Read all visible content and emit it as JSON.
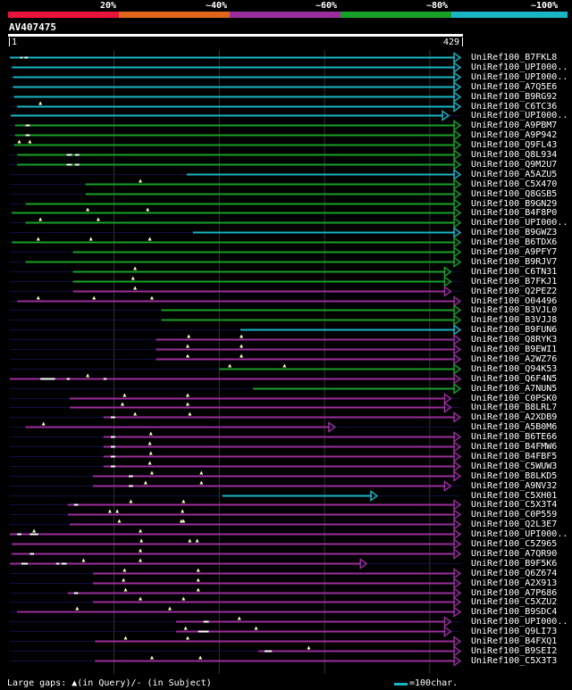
{
  "legend": [
    {
      "label": "20%",
      "color": "#e8143c"
    },
    {
      "label": "~40%",
      "color": "#e0661c"
    },
    {
      "label": "~60%",
      "color": "#9a2e9c"
    },
    {
      "label": "~80%",
      "color": "#18a028"
    },
    {
      "label": "~100%",
      "color": "#18b6c4"
    }
  ],
  "query": {
    "name": "AV407475",
    "start": "1",
    "end": "429",
    "length": 429
  },
  "colors": {
    "cyan": "#18b6c4",
    "green": "#18a028",
    "purple": "#9a2e9c",
    "gap": "#101040",
    "grid": "#333"
  },
  "hits": [
    {
      "name": "UniRef100_B7FKL8",
      "c": "cyan",
      "s": 1,
      "e": 429,
      "gaps": [
        [
          11,
          13
        ],
        [
          15,
          18
        ]
      ],
      "q": [],
      "arrow": true
    },
    {
      "name": "UniRef100_UPI000..",
      "c": "cyan",
      "s": 3,
      "e": 429,
      "gaps": [],
      "q": [],
      "arrow": true
    },
    {
      "name": "UniRef100_UPI000..",
      "c": "cyan",
      "s": 4,
      "e": 429,
      "gaps": [],
      "q": [],
      "arrow": true
    },
    {
      "name": "UniRef100_A7Q5E6",
      "c": "cyan",
      "s": 4,
      "e": 429,
      "gaps": [],
      "q": [],
      "arrow": true
    },
    {
      "name": "UniRef100_B9RG92",
      "c": "cyan",
      "s": 5,
      "e": 429,
      "gaps": [],
      "q": [],
      "arrow": true
    },
    {
      "name": "UniRef100_C6TC36",
      "c": "cyan",
      "s": 8,
      "e": 429,
      "gaps": [],
      "q": [
        30
      ],
      "arrow": true
    },
    {
      "name": "UniRef100_UPI000..",
      "c": "cyan",
      "s": 2,
      "e": 418,
      "gaps": [],
      "q": [],
      "arrow": true
    },
    {
      "name": "UniRef100_A9PBM7",
      "c": "green",
      "s": 6,
      "e": 429,
      "gaps": [
        [
          16,
          20
        ]
      ],
      "q": [],
      "arrow": true
    },
    {
      "name": "UniRef100_A9P942",
      "c": "green",
      "s": 6,
      "e": 429,
      "gaps": [
        [
          16,
          20
        ]
      ],
      "q": [],
      "arrow": true
    },
    {
      "name": "UniRef100_Q9FL43",
      "c": "green",
      "s": 5,
      "e": 429,
      "gaps": [],
      "q": [
        10,
        20
      ],
      "arrow": true
    },
    {
      "name": "UniRef100_Q8L934",
      "c": "green",
      "s": 8,
      "e": 429,
      "gaps": [
        [
          55,
          60
        ],
        [
          63,
          67
        ]
      ],
      "q": [],
      "arrow": true
    },
    {
      "name": "UniRef100_Q9M2U7",
      "c": "green",
      "s": 8,
      "e": 429,
      "gaps": [
        [
          55,
          60
        ],
        [
          63,
          67
        ]
      ],
      "q": [],
      "arrow": true
    },
    {
      "name": "UniRef100_A5AZU5",
      "c": "cyan",
      "s": 169,
      "e": 429,
      "gaps": [],
      "q": [],
      "arrow": true
    },
    {
      "name": "UniRef100_C5X470",
      "c": "green",
      "s": 73,
      "e": 429,
      "gaps": [],
      "q": [
        125
      ],
      "arrow": true
    },
    {
      "name": "UniRef100_Q8GSB5",
      "c": "green",
      "s": 73,
      "e": 429,
      "gaps": [],
      "q": [],
      "arrow": true
    },
    {
      "name": "UniRef100_B9GN29",
      "c": "green",
      "s": 16,
      "e": 429,
      "gaps": [],
      "q": [],
      "arrow": true
    },
    {
      "name": "UniRef100_B4F8P0",
      "c": "green",
      "s": 3,
      "e": 429,
      "gaps": [],
      "q": [
        75,
        132
      ],
      "arrow": true
    },
    {
      "name": "UniRef100_UPI000..",
      "c": "green",
      "s": 16,
      "e": 429,
      "gaps": [],
      "q": [
        30,
        85
      ],
      "arrow": true
    },
    {
      "name": "UniRef100_B9GWZ3",
      "c": "cyan",
      "s": 175,
      "e": 429,
      "gaps": [],
      "q": [],
      "arrow": true
    },
    {
      "name": "UniRef100_B6TDX6",
      "c": "green",
      "s": 3,
      "e": 429,
      "gaps": [],
      "q": [
        28,
        78,
        134
      ],
      "arrow": true
    },
    {
      "name": "UniRef100_A9PFY7",
      "c": "green",
      "s": 61,
      "e": 429,
      "gaps": [],
      "q": [],
      "arrow": true
    },
    {
      "name": "UniRef100_B9RJV7",
      "c": "green",
      "s": 16,
      "e": 429,
      "gaps": [],
      "q": [],
      "arrow": true
    },
    {
      "name": "UniRef100_C6TN31",
      "c": "green",
      "s": 61,
      "e": 420,
      "gaps": [],
      "q": [
        120
      ],
      "arrow": true
    },
    {
      "name": "UniRef100_B7FKJ1",
      "c": "green",
      "s": 61,
      "e": 420,
      "gaps": [],
      "q": [
        118
      ],
      "arrow": true
    },
    {
      "name": "UniRef100_Q2PEZ2",
      "c": "purple",
      "s": 61,
      "e": 420,
      "gaps": [],
      "q": [
        120
      ],
      "arrow": true
    },
    {
      "name": "UniRef100_O04496",
      "c": "purple",
      "s": 8,
      "e": 429,
      "gaps": [],
      "q": [
        28,
        81,
        136
      ],
      "arrow": true
    },
    {
      "name": "UniRef100_B3VJL0",
      "c": "green",
      "s": 145,
      "e": 429,
      "gaps": [],
      "q": [],
      "arrow": true
    },
    {
      "name": "UniRef100_B3VJJ8",
      "c": "green",
      "s": 145,
      "e": 429,
      "gaps": [],
      "q": [],
      "arrow": true
    },
    {
      "name": "UniRef100_B9FUN6",
      "c": "cyan",
      "s": 220,
      "e": 429,
      "gaps": [],
      "q": [],
      "arrow": true
    },
    {
      "name": "UniRef100_Q8RYK3",
      "c": "purple",
      "s": 140,
      "e": 429,
      "gaps": [],
      "q": [
        171,
        221
      ],
      "arrow": true
    },
    {
      "name": "UniRef100_B9EWI1",
      "c": "purple",
      "s": 140,
      "e": 429,
      "gaps": [],
      "q": [
        170,
        221
      ],
      "arrow": true
    },
    {
      "name": "UniRef100_A2WZ76",
      "c": "purple",
      "s": 140,
      "e": 429,
      "gaps": [],
      "q": [
        170,
        221
      ],
      "arrow": true
    },
    {
      "name": "UniRef100_Q94K53",
      "c": "green",
      "s": 200,
      "e": 429,
      "gaps": [],
      "q": [
        210,
        262
      ],
      "arrow": true
    },
    {
      "name": "UniRef100_Q6F4N5",
      "c": "purple",
      "s": 1,
      "e": 429,
      "gaps": [
        [
          30,
          44
        ],
        [
          55,
          58
        ],
        [
          90,
          93
        ]
      ],
      "q": [
        75
      ],
      "arrow": true
    },
    {
      "name": "UniRef100_A7NUN5",
      "c": "green",
      "s": 232,
      "e": 429,
      "gaps": [],
      "q": [],
      "arrow": true
    },
    {
      "name": "UniRef100_C0PSK0",
      "c": "purple",
      "s": 58,
      "e": 420,
      "gaps": [],
      "q": [
        110,
        170
      ],
      "arrow": true
    },
    {
      "name": "UniRef100_B8LRL7",
      "c": "purple",
      "s": 58,
      "e": 420,
      "gaps": [],
      "q": [
        108,
        170
      ],
      "arrow": true
    },
    {
      "name": "UniRef100_A2XDB9",
      "c": "purple",
      "s": 90,
      "e": 429,
      "gaps": [
        [
          97,
          101
        ]
      ],
      "q": [
        120,
        172
      ],
      "arrow": true
    },
    {
      "name": "UniRef100_A5B0M6",
      "c": "purple",
      "s": 16,
      "e": 310,
      "gaps": [],
      "q": [
        33
      ],
      "arrow": true
    },
    {
      "name": "UniRef100_B6TE66",
      "c": "purple",
      "s": 90,
      "e": 429,
      "gaps": [
        [
          97,
          101
        ]
      ],
      "q": [
        135
      ],
      "arrow": true
    },
    {
      "name": "UniRef100_B4FMW6",
      "c": "purple",
      "s": 90,
      "e": 429,
      "gaps": [
        [
          97,
          101
        ]
      ],
      "q": [
        134
      ],
      "arrow": true
    },
    {
      "name": "UniRef100_B4FBF5",
      "c": "purple",
      "s": 90,
      "e": 429,
      "gaps": [
        [
          97,
          101
        ]
      ],
      "q": [
        135
      ],
      "arrow": true
    },
    {
      "name": "UniRef100_C5WUW3",
      "c": "purple",
      "s": 90,
      "e": 429,
      "gaps": [
        [
          97,
          101
        ]
      ],
      "q": [
        134
      ],
      "arrow": true
    },
    {
      "name": "UniRef100_B8LKD5",
      "c": "purple",
      "s": 80,
      "e": 429,
      "gaps": [
        [
          114,
          118
        ]
      ],
      "q": [
        136,
        183
      ],
      "arrow": true
    },
    {
      "name": "UniRef100_A9NV32",
      "c": "purple",
      "s": 80,
      "e": 420,
      "gaps": [
        [
          114,
          118
        ]
      ],
      "q": [
        130,
        183
      ],
      "arrow": true
    },
    {
      "name": "UniRef100_C5XH01",
      "c": "cyan",
      "s": 203,
      "e": 350,
      "gaps": [],
      "q": [],
      "arrow": true
    },
    {
      "name": "UniRef100_C5X3T4",
      "c": "purple",
      "s": 56,
      "e": 429,
      "gaps": [
        [
          62,
          66
        ]
      ],
      "q": [
        116,
        166
      ],
      "arrow": true
    },
    {
      "name": "UniRef100_C0P559",
      "c": "purple",
      "s": 56,
      "e": 429,
      "gaps": [],
      "q": [
        96,
        103,
        165
      ],
      "arrow": true
    },
    {
      "name": "UniRef100_Q2L3E7",
      "c": "purple",
      "s": 58,
      "e": 429,
      "gaps": [],
      "q": [
        105,
        164,
        166
      ],
      "arrow": true
    },
    {
      "name": "UniRef100_UPI000..",
      "c": "purple",
      "s": 1,
      "e": 429,
      "gaps": [
        [
          8,
          12
        ],
        [
          20,
          28
        ]
      ],
      "q": [
        24,
        125
      ],
      "arrow": true
    },
    {
      "name": "UniRef100_C5Z965",
      "c": "purple",
      "s": 3,
      "e": 429,
      "gaps": [],
      "q": [
        126,
        172,
        179
      ],
      "arrow": true
    },
    {
      "name": "UniRef100_A7QR90",
      "c": "purple",
      "s": 3,
      "e": 429,
      "gaps": [
        [
          20,
          24
        ]
      ],
      "q": [
        125
      ],
      "arrow": true
    },
    {
      "name": "UniRef100_B9F5K6",
      "c": "purple",
      "s": 1,
      "e": 340,
      "gaps": [
        [
          12,
          18
        ],
        [
          45,
          48
        ],
        [
          50,
          55
        ]
      ],
      "q": [
        71,
        125
      ],
      "arrow": true
    },
    {
      "name": "UniRef100_Q6Z674",
      "c": "purple",
      "s": 80,
      "e": 429,
      "gaps": [],
      "q": [
        110,
        180
      ],
      "arrow": true
    },
    {
      "name": "UniRef100_A2X913",
      "c": "purple",
      "s": 80,
      "e": 429,
      "gaps": [],
      "q": [
        109,
        180
      ],
      "arrow": true
    },
    {
      "name": "UniRef100_A7P686",
      "c": "purple",
      "s": 56,
      "e": 429,
      "gaps": [
        [
          62,
          66
        ]
      ],
      "q": [
        111,
        180
      ],
      "arrow": true
    },
    {
      "name": "UniRef100_C5XZU2",
      "c": "purple",
      "s": 80,
      "e": 429,
      "gaps": [],
      "q": [
        125,
        166
      ],
      "arrow": true
    },
    {
      "name": "UniRef100_B9SDC4",
      "c": "purple",
      "s": 8,
      "e": 429,
      "gaps": [],
      "q": [
        65,
        153
      ],
      "arrow": true
    },
    {
      "name": "UniRef100_UPI000..",
      "c": "purple",
      "s": 159,
      "e": 420,
      "gaps": [
        [
          185,
          190
        ]
      ],
      "q": [
        219
      ],
      "arrow": true
    },
    {
      "name": "UniRef100_Q9LI73",
      "c": "purple",
      "s": 159,
      "e": 420,
      "gaps": [
        [
          180,
          190
        ]
      ],
      "q": [
        168,
        235
      ],
      "arrow": true
    },
    {
      "name": "UniRef100_B4FXQ1",
      "c": "purple",
      "s": 82,
      "e": 429,
      "gaps": [],
      "q": [
        111,
        170
      ],
      "arrow": true
    },
    {
      "name": "UniRef100_B9SEI2",
      "c": "purple",
      "s": 237,
      "e": 429,
      "gaps": [
        [
          243,
          250
        ]
      ],
      "q": [
        285
      ],
      "arrow": true
    },
    {
      "name": "UniRef100_C5X3T3",
      "c": "purple",
      "s": 82,
      "e": 429,
      "gaps": [],
      "q": [
        136,
        182
      ],
      "arrow": true
    }
  ],
  "footer": {
    "text": "Large gaps: ▲(in Query)/- (in Subject)",
    "scale": "=100char."
  }
}
